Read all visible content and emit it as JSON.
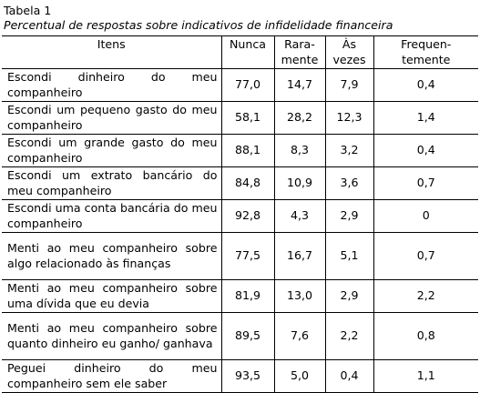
{
  "header": {
    "title": "Tabela 1",
    "subtitle": "Percentual de respostas sobre indicativos de infidelidade financeira"
  },
  "table": {
    "columns": [
      [
        "Itens"
      ],
      [
        "Nunca"
      ],
      [
        "Rara-",
        "mente"
      ],
      [
        "Às",
        "vezes"
      ],
      [
        "Frequen-",
        "temente"
      ]
    ],
    "rows": [
      [
        "Escondi dinheiro do meu companheiro",
        "77,0",
        "14,7",
        "7,9",
        "0,4"
      ],
      [
        "Escondi um pequeno gasto do meu companheiro",
        "58,1",
        "28,2",
        "12,3",
        "1,4"
      ],
      [
        "Escondi um grande gasto do meu companheiro",
        "88,1",
        "8,3",
        "3,2",
        "0,4"
      ],
      [
        "Escondi um extrato bancário do meu companheiro",
        "84,8",
        "10,9",
        "3,6",
        "0,7"
      ],
      [
        "Escondi uma conta bancária do meu companheiro",
        "92,8",
        "4,3",
        "2,9",
        "0"
      ],
      [
        "Menti ao meu companheiro sobre algo relacionado às finanças",
        "77,5",
        "16,7",
        "5,1",
        "0,7"
      ],
      [
        "Menti ao meu companheiro sobre uma dívida que eu devia",
        "81,9",
        "13,0",
        "2,9",
        "2,2"
      ],
      [
        "Menti ao meu companheiro sobre quanto dinheiro eu ganho/ ganhava",
        "89,5",
        "7,6",
        "2,2",
        "0,8"
      ],
      [
        "Peguei dinheiro do meu companheiro sem ele saber",
        "93,5",
        "5,0",
        "0,4",
        "1,1"
      ]
    ]
  }
}
